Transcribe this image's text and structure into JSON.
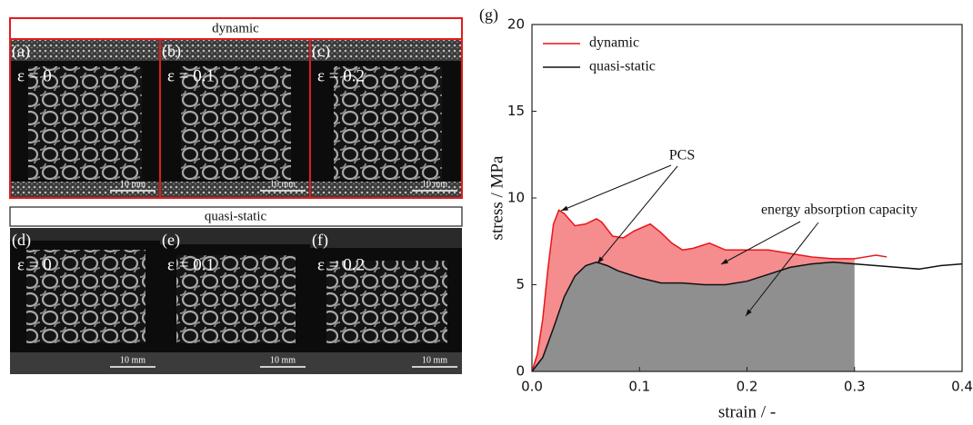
{
  "figure_panels": {
    "dynamic_title": "dynamic",
    "quasi_static_title": "quasi-static",
    "panels": [
      {
        "label": "(a)",
        "strain": "ε = 0",
        "scale": "10 mm"
      },
      {
        "label": "(b)",
        "strain": "ε = 0.1",
        "scale": "10 mm"
      },
      {
        "label": "(c)",
        "strain": "ε = 0.2",
        "scale": "10 mm"
      },
      {
        "label": "(d)",
        "strain": "ε = 0",
        "scale": "10 mm"
      },
      {
        "label": "(e)",
        "strain": "ε = 0.1",
        "scale": "10 mm"
      },
      {
        "label": "(f)",
        "strain": "ε = 0.2",
        "scale": "10 mm"
      }
    ]
  },
  "chart_data": {
    "type": "line",
    "panel_label": "(g)",
    "x_label": "strain / -",
    "y_label": "stress / MPa",
    "xlim": [
      0,
      0.4
    ],
    "ylim": [
      0,
      20
    ],
    "xticks": [
      {
        "value": 0,
        "label": "0.0"
      },
      0.1,
      0.2,
      0.3,
      0.4
    ],
    "yticks": [
      0,
      5,
      10,
      15,
      20
    ],
    "fill_to_x": 0.3,
    "legend": "upper left",
    "annotations": [
      "PCS",
      "energy absorption capacity"
    ],
    "series": [
      {
        "name": "dynamic",
        "color": "#e8151b",
        "fill_color": "#f58c8e",
        "x": [
          0,
          0.005,
          0.01,
          0.015,
          0.02,
          0.025,
          0.03,
          0.04,
          0.05,
          0.06,
          0.065,
          0.075,
          0.085,
          0.095,
          0.11,
          0.12,
          0.13,
          0.14,
          0.15,
          0.165,
          0.18,
          0.2,
          0.22,
          0.24,
          0.26,
          0.28,
          0.3,
          0.31,
          0.32,
          0.33
        ],
        "values": [
          0,
          1,
          3,
          6,
          8.5,
          9.3,
          9.1,
          8.4,
          8.5,
          8.8,
          8.6,
          7.8,
          7.7,
          8.1,
          8.5,
          8.0,
          7.4,
          7.0,
          7.1,
          7.4,
          7.0,
          7.0,
          7.0,
          6.8,
          6.6,
          6.5,
          6.5,
          6.6,
          6.7,
          6.6
        ]
      },
      {
        "name": "quasi-static",
        "color": "#111111",
        "fill_color": "#8f8f8f",
        "x": [
          0,
          0.01,
          0.02,
          0.03,
          0.04,
          0.05,
          0.06,
          0.07,
          0.08,
          0.1,
          0.12,
          0.14,
          0.16,
          0.18,
          0.2,
          0.22,
          0.24,
          0.26,
          0.28,
          0.3,
          0.32,
          0.34,
          0.36,
          0.38,
          0.4
        ],
        "values": [
          0,
          0.8,
          2.5,
          4.3,
          5.5,
          6.1,
          6.3,
          6.1,
          5.8,
          5.4,
          5.1,
          5.1,
          5.0,
          5.0,
          5.2,
          5.6,
          6.0,
          6.2,
          6.3,
          6.2,
          6.1,
          6.0,
          5.9,
          6.1,
          6.2
        ]
      }
    ]
  }
}
